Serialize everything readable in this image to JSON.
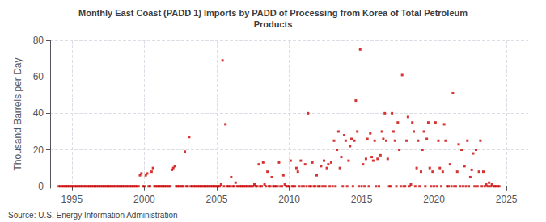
{
  "chart_data": {
    "type": "scatter",
    "title": "Monthly East Coast (PADD 1) Imports by PADD of Processing from Korea of Total Petroleum\nProducts",
    "ylabel": "Thousand Barrels per Day",
    "annotations": [
      "Source: U.S. Energy Information Administration"
    ],
    "color": "#cc0000",
    "marker": "square",
    "grid": true,
    "xlim": [
      1993.5,
      2026.5
    ],
    "ylim": [
      -1,
      80
    ],
    "xticks": [
      1995,
      2000,
      2005,
      2010,
      2015,
      2020,
      2025
    ],
    "yticks": [
      0,
      20,
      40,
      60,
      80
    ],
    "x": [
      1994.1,
      1994.2,
      1994.3,
      1994.4,
      1994.5,
      1994.6,
      1994.7,
      1994.8,
      1994.9,
      1995.0,
      1995.1,
      1995.2,
      1995.3,
      1995.4,
      1995.5,
      1995.6,
      1995.7,
      1995.8,
      1995.9,
      1996.0,
      1996.1,
      1996.2,
      1996.3,
      1996.4,
      1996.5,
      1996.6,
      1996.7,
      1996.8,
      1996.9,
      1997.0,
      1997.1,
      1997.2,
      1997.3,
      1997.4,
      1997.5,
      1997.6,
      1997.7,
      1997.8,
      1997.9,
      1998.0,
      1998.1,
      1998.2,
      1998.3,
      1998.4,
      1998.5,
      1998.6,
      1998.7,
      1998.8,
      1998.9,
      1999.0,
      1999.1,
      1999.2,
      1999.3,
      1999.4,
      1999.5,
      1999.6,
      1999.7,
      1999.8,
      1999.9,
      2000.0,
      2000.1,
      2000.2,
      2000.3,
      2000.4,
      2000.5,
      2000.6,
      2000.7,
      2000.8,
      2000.9,
      2001.0,
      2001.1,
      2001.2,
      2001.3,
      2001.4,
      2001.5,
      2001.6,
      2001.7,
      2001.8,
      2001.9,
      2002.0,
      2002.1,
      2002.2,
      2002.3,
      2002.4,
      2002.5,
      2002.6,
      2002.7,
      2002.8,
      2002.9,
      2003.0,
      2003.1,
      2003.2,
      2003.3,
      2003.4,
      2003.5,
      2003.6,
      2003.7,
      2003.8,
      2003.9,
      2004.0,
      2004.1,
      2004.2,
      2004.3,
      2004.4,
      2004.5,
      2004.6,
      2004.7,
      2004.8,
      2004.9,
      2005.0,
      2005.1,
      2005.2,
      2005.3,
      2005.4,
      2005.5,
      2005.6,
      2005.7,
      2005.8,
      2005.9,
      2006.0,
      2006.1,
      2006.2,
      2006.3,
      2006.4,
      2006.5,
      2006.6,
      2006.7,
      2006.8,
      2006.9,
      2007.0,
      2007.1,
      2007.2,
      2007.3,
      2007.4,
      2007.5,
      2007.6,
      2007.7,
      2007.8,
      2007.9,
      2008.0,
      2008.1,
      2008.2,
      2008.3,
      2008.4,
      2008.5,
      2008.6,
      2008.7,
      2008.8,
      2008.9,
      2009.0,
      2009.1,
      2009.2,
      2009.3,
      2009.4,
      2009.5,
      2009.6,
      2009.7,
      2009.8,
      2009.9,
      2010.0,
      2010.1,
      2010.2,
      2010.3,
      2010.4,
      2010.5,
      2010.6,
      2010.7,
      2010.8,
      2010.9,
      2011.0,
      2011.1,
      2011.2,
      2011.3,
      2011.4,
      2011.5,
      2011.6,
      2011.7,
      2011.8,
      2011.9,
      2012.0,
      2012.1,
      2012.2,
      2012.3,
      2012.4,
      2012.5,
      2012.6,
      2012.7,
      2012.8,
      2012.9,
      2013.0,
      2013.1,
      2013.2,
      2013.3,
      2013.4,
      2013.5,
      2013.6,
      2013.7,
      2013.8,
      2013.9,
      2014.0,
      2014.1,
      2014.2,
      2014.3,
      2014.4,
      2014.5,
      2014.6,
      2014.7,
      2014.8,
      2014.9,
      2015.0,
      2015.1,
      2015.2,
      2015.3,
      2015.4,
      2015.5,
      2015.6,
      2015.7,
      2015.8,
      2015.9,
      2016.0,
      2016.1,
      2016.2,
      2016.3,
      2016.4,
      2016.5,
      2016.6,
      2016.7,
      2016.8,
      2016.9,
      2017.0,
      2017.1,
      2017.2,
      2017.3,
      2017.4,
      2017.5,
      2017.6,
      2017.7,
      2017.8,
      2017.9,
      2018.0,
      2018.1,
      2018.2,
      2018.3,
      2018.4,
      2018.5,
      2018.6,
      2018.7,
      2018.8,
      2018.9,
      2019.0,
      2019.1,
      2019.2,
      2019.3,
      2019.4,
      2019.5,
      2019.6,
      2019.7,
      2019.8,
      2019.9,
      2020.0,
      2020.1,
      2020.2,
      2020.3,
      2020.4,
      2020.5,
      2020.6,
      2020.7,
      2020.8,
      2020.9,
      2021.0,
      2021.1,
      2021.2,
      2021.3,
      2021.4,
      2021.5,
      2021.6,
      2021.7,
      2021.8,
      2021.9,
      2022.0,
      2022.1,
      2022.2,
      2022.3,
      2022.4,
      2022.5,
      2022.6,
      2022.7,
      2022.8,
      2022.9,
      2023.0,
      2023.1,
      2023.2,
      2023.3,
      2023.4,
      2023.5,
      2023.6,
      2023.7,
      2023.8,
      2023.9,
      2024.0,
      2024.1,
      2024.2,
      2024.3,
      2024.4,
      2024.5
    ],
    "values": [
      0,
      0,
      0,
      0,
      0,
      0,
      0,
      0,
      0,
      0,
      0,
      0,
      0,
      0,
      0,
      0,
      0,
      0,
      0,
      0,
      0,
      0,
      0,
      0,
      0,
      0,
      0,
      0,
      0,
      0,
      0,
      0,
      0,
      0,
      0,
      0,
      0,
      0,
      0,
      0,
      0,
      0,
      0,
      0,
      0,
      0,
      0,
      0,
      0,
      0,
      0,
      0,
      0,
      0,
      0,
      0,
      6,
      7,
      0,
      0,
      6,
      7,
      0,
      0,
      8,
      10,
      0,
      0,
      0,
      0,
      0,
      0,
      0,
      0,
      0,
      0,
      0,
      0,
      9,
      10,
      11,
      0,
      0,
      0,
      0,
      0,
      0,
      19,
      0,
      0,
      27,
      0,
      0,
      0,
      0,
      0,
      0,
      0,
      0,
      0,
      0,
      0,
      0,
      0,
      0,
      0,
      0,
      0,
      0,
      0,
      0,
      0,
      1,
      69,
      0,
      34,
      0,
      0,
      0,
      5,
      0,
      0,
      2,
      0,
      0,
      0,
      0,
      0,
      0,
      0,
      0,
      0,
      0,
      0,
      0,
      1,
      0,
      0,
      12,
      0,
      0,
      13,
      1,
      0,
      8,
      0,
      0,
      5,
      0,
      0,
      0,
      0,
      13,
      0,
      0,
      6,
      1,
      0,
      0,
      0,
      14,
      0,
      0,
      0,
      10,
      8,
      0,
      14,
      0,
      0,
      12,
      0,
      40,
      0,
      0,
      13,
      0,
      0,
      6,
      0,
      0,
      11,
      0,
      14,
      0,
      10,
      12,
      0,
      13,
      0,
      25,
      0,
      20,
      30,
      10,
      16,
      0,
      28,
      25,
      0,
      14,
      22,
      26,
      0,
      25,
      47,
      30,
      0,
      75,
      0,
      12,
      0,
      15,
      26,
      0,
      29,
      16,
      14,
      25,
      0,
      15,
      0,
      17,
      30,
      26,
      40,
      25,
      15,
      0,
      0,
      40,
      30,
      25,
      0,
      35,
      20,
      0,
      61,
      0,
      0,
      25,
      38,
      0,
      1,
      35,
      30,
      0,
      10,
      25,
      0,
      8,
      20,
      30,
      0,
      26,
      35,
      10,
      0,
      8,
      0,
      35,
      0,
      25,
      10,
      0,
      8,
      34,
      25,
      0,
      0,
      12,
      0,
      51,
      0,
      0,
      8,
      23,
      0,
      20,
      0,
      11,
      0,
      25,
      0,
      5,
      9,
      18,
      0,
      20,
      0,
      8,
      25,
      0,
      8,
      0,
      1,
      0,
      2,
      0,
      1,
      0,
      0,
      0,
      0,
      0
    ]
  }
}
